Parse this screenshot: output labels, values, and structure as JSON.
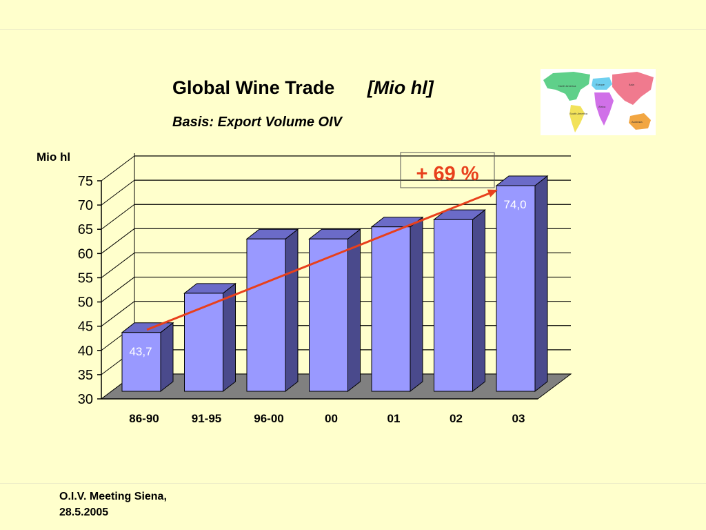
{
  "slide": {
    "title": "Global Wine Trade",
    "title_unit": "[Mio hl]",
    "subtitle": "Basis: Export Volume OIV",
    "footer_line1": "O.I.V. Meeting Siena,",
    "footer_line2": "28.5.2005",
    "map_labels": [
      "North America",
      "Europe",
      "Asia",
      "Africa",
      "South America",
      "Australia"
    ]
  },
  "chart_data": {
    "type": "bar",
    "ylabel": "Mio hl",
    "categories": [
      "86-90",
      "91-95",
      "96-00",
      "00",
      "01",
      "02",
      "03"
    ],
    "values": [
      43.7,
      51.8,
      63.0,
      63.0,
      65.5,
      67.0,
      74.0
    ],
    "data_labels": [
      {
        "index": 0,
        "text": "43,7"
      },
      {
        "index": 6,
        "text": "74,0"
      }
    ],
    "ylim": [
      30,
      75
    ],
    "yticks": [
      30,
      35,
      40,
      45,
      50,
      55,
      60,
      65,
      70,
      75
    ],
    "grid": true,
    "style": "3d",
    "bar_color": "#9999FF",
    "bar_side_color": "#4A4A8C",
    "bar_top_color": "#6B6BC8",
    "floor_color": "#808080",
    "trend_color": "#E8401C",
    "annotation": {
      "text": "+ 69 %",
      "color": "#E8401C"
    }
  }
}
